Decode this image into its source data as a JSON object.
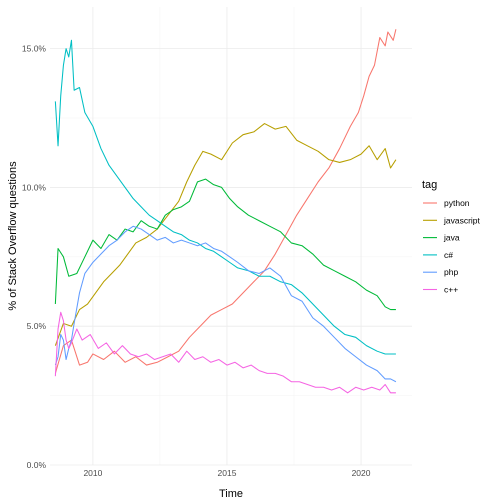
{
  "chart_data": {
    "type": "line",
    "title": "",
    "xlabel": "Time",
    "ylabel": "% of Stack Overflow questions",
    "xlim": [
      2008.4,
      2021.9
    ],
    "ylim": [
      0,
      16.5
    ],
    "x_ticks": [
      2010,
      2015,
      2020
    ],
    "x_tick_labels": [
      "2010",
      "2015",
      "2020"
    ],
    "y_ticks": [
      0,
      5,
      10,
      15
    ],
    "y_tick_labels": [
      "0.0%",
      "5.0%",
      "10.0%",
      "15.0%"
    ],
    "grid": true,
    "legend": {
      "title": "tag",
      "placement": "right",
      "entries": [
        "python",
        "javascript",
        "java",
        "c#",
        "php",
        "c++"
      ]
    },
    "series": [
      {
        "name": "python",
        "color": "#F8766D",
        "points": [
          [
            2008.6,
            3.3
          ],
          [
            2008.9,
            4.3
          ],
          [
            2009.2,
            4.5
          ],
          [
            2009.5,
            3.6
          ],
          [
            2009.8,
            3.7
          ],
          [
            2010.0,
            4.0
          ],
          [
            2010.4,
            3.8
          ],
          [
            2010.8,
            4.1
          ],
          [
            2011.2,
            3.7
          ],
          [
            2011.6,
            3.9
          ],
          [
            2012.0,
            3.6
          ],
          [
            2012.4,
            3.7
          ],
          [
            2012.8,
            3.9
          ],
          [
            2013.2,
            4.1
          ],
          [
            2013.6,
            4.6
          ],
          [
            2014.0,
            5.0
          ],
          [
            2014.4,
            5.4
          ],
          [
            2014.8,
            5.6
          ],
          [
            2015.2,
            5.8
          ],
          [
            2015.6,
            6.2
          ],
          [
            2016.0,
            6.6
          ],
          [
            2016.4,
            7.0
          ],
          [
            2016.8,
            7.6
          ],
          [
            2017.2,
            8.3
          ],
          [
            2017.6,
            9.0
          ],
          [
            2018.0,
            9.6
          ],
          [
            2018.4,
            10.2
          ],
          [
            2018.8,
            10.7
          ],
          [
            2019.2,
            11.4
          ],
          [
            2019.6,
            12.2
          ],
          [
            2019.9,
            12.7
          ],
          [
            2020.1,
            13.3
          ],
          [
            2020.3,
            14.0
          ],
          [
            2020.5,
            14.4
          ],
          [
            2020.7,
            15.4
          ],
          [
            2020.9,
            15.1
          ],
          [
            2021.0,
            15.6
          ],
          [
            2021.2,
            15.3
          ],
          [
            2021.3,
            15.7
          ]
        ]
      },
      {
        "name": "javascript",
        "color": "#B79F00",
        "points": [
          [
            2008.6,
            4.3
          ],
          [
            2008.9,
            5.1
          ],
          [
            2009.2,
            5.0
          ],
          [
            2009.5,
            5.6
          ],
          [
            2009.8,
            5.8
          ],
          [
            2010.1,
            6.2
          ],
          [
            2010.4,
            6.6
          ],
          [
            2010.7,
            6.9
          ],
          [
            2011.0,
            7.2
          ],
          [
            2011.3,
            7.6
          ],
          [
            2011.6,
            8.0
          ],
          [
            2012.0,
            8.2
          ],
          [
            2012.4,
            8.5
          ],
          [
            2012.8,
            9.0
          ],
          [
            2013.2,
            9.5
          ],
          [
            2013.5,
            10.2
          ],
          [
            2013.8,
            10.8
          ],
          [
            2014.1,
            11.3
          ],
          [
            2014.4,
            11.2
          ],
          [
            2014.8,
            11.0
          ],
          [
            2015.2,
            11.6
          ],
          [
            2015.6,
            11.9
          ],
          [
            2016.0,
            12.0
          ],
          [
            2016.4,
            12.3
          ],
          [
            2016.8,
            12.1
          ],
          [
            2017.2,
            12.2
          ],
          [
            2017.6,
            11.7
          ],
          [
            2018.0,
            11.5
          ],
          [
            2018.4,
            11.3
          ],
          [
            2018.8,
            11.0
          ],
          [
            2019.2,
            10.9
          ],
          [
            2019.6,
            11.0
          ],
          [
            2020.0,
            11.2
          ],
          [
            2020.3,
            11.5
          ],
          [
            2020.6,
            11.0
          ],
          [
            2020.9,
            11.4
          ],
          [
            2021.1,
            10.7
          ],
          [
            2021.3,
            11.0
          ]
        ]
      },
      {
        "name": "java",
        "color": "#00BA38",
        "points": [
          [
            2008.6,
            5.8
          ],
          [
            2008.7,
            7.8
          ],
          [
            2008.9,
            7.5
          ],
          [
            2009.1,
            6.8
          ],
          [
            2009.4,
            6.9
          ],
          [
            2009.7,
            7.5
          ],
          [
            2010.0,
            8.1
          ],
          [
            2010.3,
            7.8
          ],
          [
            2010.6,
            8.3
          ],
          [
            2010.9,
            8.1
          ],
          [
            2011.2,
            8.5
          ],
          [
            2011.5,
            8.4
          ],
          [
            2011.8,
            8.8
          ],
          [
            2012.1,
            8.6
          ],
          [
            2012.4,
            8.5
          ],
          [
            2012.7,
            9.0
          ],
          [
            2013.0,
            9.2
          ],
          [
            2013.3,
            9.3
          ],
          [
            2013.6,
            9.5
          ],
          [
            2013.9,
            10.2
          ],
          [
            2014.2,
            10.3
          ],
          [
            2014.5,
            10.1
          ],
          [
            2014.8,
            10.0
          ],
          [
            2015.1,
            9.6
          ],
          [
            2015.4,
            9.3
          ],
          [
            2015.8,
            9.0
          ],
          [
            2016.2,
            8.8
          ],
          [
            2016.6,
            8.6
          ],
          [
            2017.0,
            8.4
          ],
          [
            2017.4,
            8.0
          ],
          [
            2017.8,
            7.9
          ],
          [
            2018.2,
            7.6
          ],
          [
            2018.6,
            7.2
          ],
          [
            2019.0,
            7.0
          ],
          [
            2019.4,
            6.8
          ],
          [
            2019.8,
            6.6
          ],
          [
            2020.2,
            6.3
          ],
          [
            2020.6,
            6.1
          ],
          [
            2020.9,
            5.7
          ],
          [
            2021.1,
            5.6
          ],
          [
            2021.3,
            5.6
          ]
        ]
      },
      {
        "name": "c#",
        "color": "#00BFC4",
        "points": [
          [
            2008.6,
            13.1
          ],
          [
            2008.7,
            11.5
          ],
          [
            2008.8,
            13.3
          ],
          [
            2008.9,
            14.4
          ],
          [
            2009.0,
            15.0
          ],
          [
            2009.1,
            14.7
          ],
          [
            2009.2,
            15.3
          ],
          [
            2009.3,
            13.5
          ],
          [
            2009.5,
            13.6
          ],
          [
            2009.7,
            12.7
          ],
          [
            2010.0,
            12.2
          ],
          [
            2010.3,
            11.4
          ],
          [
            2010.6,
            10.8
          ],
          [
            2010.9,
            10.4
          ],
          [
            2011.2,
            10.0
          ],
          [
            2011.5,
            9.6
          ],
          [
            2011.8,
            9.3
          ],
          [
            2012.1,
            9.0
          ],
          [
            2012.4,
            8.8
          ],
          [
            2012.7,
            8.6
          ],
          [
            2013.0,
            8.4
          ],
          [
            2013.3,
            8.3
          ],
          [
            2013.6,
            8.1
          ],
          [
            2013.9,
            8.0
          ],
          [
            2014.2,
            7.8
          ],
          [
            2014.5,
            7.7
          ],
          [
            2014.8,
            7.5
          ],
          [
            2015.1,
            7.3
          ],
          [
            2015.4,
            7.1
          ],
          [
            2015.8,
            7.0
          ],
          [
            2016.2,
            6.8
          ],
          [
            2016.6,
            6.8
          ],
          [
            2017.0,
            6.6
          ],
          [
            2017.4,
            6.5
          ],
          [
            2017.8,
            6.2
          ],
          [
            2018.2,
            5.8
          ],
          [
            2018.6,
            5.4
          ],
          [
            2019.0,
            5.0
          ],
          [
            2019.4,
            4.7
          ],
          [
            2019.8,
            4.6
          ],
          [
            2020.2,
            4.3
          ],
          [
            2020.6,
            4.1
          ],
          [
            2020.9,
            4.0
          ],
          [
            2021.1,
            4.0
          ],
          [
            2021.3,
            4.0
          ]
        ]
      },
      {
        "name": "php",
        "color": "#619CFF",
        "points": [
          [
            2008.6,
            3.6
          ],
          [
            2008.7,
            3.9
          ],
          [
            2008.8,
            4.7
          ],
          [
            2008.9,
            4.5
          ],
          [
            2009.0,
            3.8
          ],
          [
            2009.1,
            4.2
          ],
          [
            2009.2,
            4.5
          ],
          [
            2009.3,
            5.1
          ],
          [
            2009.5,
            6.2
          ],
          [
            2009.7,
            6.9
          ],
          [
            2010.0,
            7.3
          ],
          [
            2010.3,
            7.6
          ],
          [
            2010.6,
            7.9
          ],
          [
            2010.9,
            8.1
          ],
          [
            2011.2,
            8.4
          ],
          [
            2011.5,
            8.6
          ],
          [
            2011.8,
            8.5
          ],
          [
            2012.1,
            8.3
          ],
          [
            2012.4,
            8.1
          ],
          [
            2012.7,
            8.2
          ],
          [
            2013.0,
            8.0
          ],
          [
            2013.3,
            8.1
          ],
          [
            2013.6,
            8.0
          ],
          [
            2013.9,
            7.9
          ],
          [
            2014.2,
            8.0
          ],
          [
            2014.5,
            7.8
          ],
          [
            2014.8,
            7.7
          ],
          [
            2015.1,
            7.5
          ],
          [
            2015.4,
            7.3
          ],
          [
            2015.8,
            7.0
          ],
          [
            2016.2,
            6.9
          ],
          [
            2016.6,
            7.1
          ],
          [
            2017.0,
            6.8
          ],
          [
            2017.4,
            6.1
          ],
          [
            2017.8,
            5.9
          ],
          [
            2018.2,
            5.3
          ],
          [
            2018.6,
            5.0
          ],
          [
            2019.0,
            4.6
          ],
          [
            2019.4,
            4.2
          ],
          [
            2019.8,
            3.9
          ],
          [
            2020.2,
            3.6
          ],
          [
            2020.6,
            3.4
          ],
          [
            2020.9,
            3.1
          ],
          [
            2021.1,
            3.1
          ],
          [
            2021.3,
            3.0
          ]
        ]
      },
      {
        "name": "c++",
        "color": "#F564E3",
        "points": [
          [
            2008.6,
            3.2
          ],
          [
            2008.7,
            4.9
          ],
          [
            2008.8,
            5.5
          ],
          [
            2008.9,
            5.2
          ],
          [
            2009.0,
            4.5
          ],
          [
            2009.1,
            4.2
          ],
          [
            2009.2,
            4.4
          ],
          [
            2009.4,
            4.9
          ],
          [
            2009.6,
            4.5
          ],
          [
            2009.9,
            4.7
          ],
          [
            2010.2,
            4.2
          ],
          [
            2010.5,
            4.4
          ],
          [
            2010.8,
            4.0
          ],
          [
            2011.1,
            4.3
          ],
          [
            2011.4,
            4.0
          ],
          [
            2011.7,
            3.9
          ],
          [
            2012.0,
            4.0
          ],
          [
            2012.3,
            3.8
          ],
          [
            2012.6,
            3.9
          ],
          [
            2012.9,
            4.0
          ],
          [
            2013.2,
            3.7
          ],
          [
            2013.5,
            4.1
          ],
          [
            2013.8,
            3.8
          ],
          [
            2014.1,
            3.9
          ],
          [
            2014.4,
            3.7
          ],
          [
            2014.7,
            3.8
          ],
          [
            2015.0,
            3.6
          ],
          [
            2015.3,
            3.7
          ],
          [
            2015.6,
            3.5
          ],
          [
            2015.9,
            3.6
          ],
          [
            2016.2,
            3.4
          ],
          [
            2016.5,
            3.3
          ],
          [
            2016.8,
            3.3
          ],
          [
            2017.1,
            3.2
          ],
          [
            2017.4,
            3.0
          ],
          [
            2017.7,
            3.0
          ],
          [
            2018.0,
            2.9
          ],
          [
            2018.3,
            2.8
          ],
          [
            2018.6,
            2.8
          ],
          [
            2018.9,
            2.7
          ],
          [
            2019.2,
            2.8
          ],
          [
            2019.5,
            2.6
          ],
          [
            2019.8,
            2.8
          ],
          [
            2020.1,
            2.7
          ],
          [
            2020.4,
            2.8
          ],
          [
            2020.7,
            2.7
          ],
          [
            2020.9,
            2.9
          ],
          [
            2021.1,
            2.6
          ],
          [
            2021.3,
            2.6
          ]
        ]
      }
    ]
  }
}
